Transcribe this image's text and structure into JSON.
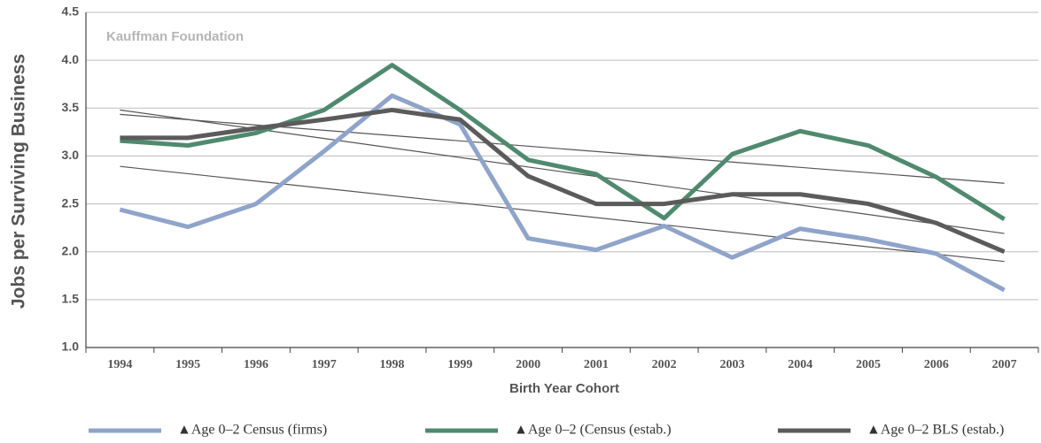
{
  "chart_data": {
    "type": "line",
    "annotation": "Kauffman Foundation",
    "y_label": "Jobs per Surviving Business",
    "x_label": "Birth Year Cohort",
    "categories": [
      "1994",
      "1995",
      "1996",
      "1997",
      "1998",
      "1999",
      "2000",
      "2001",
      "2002",
      "2003",
      "2004",
      "2005",
      "2006",
      "2007"
    ],
    "series": [
      {
        "name": "▲Age 0–2 Census (firms)",
        "color": "#8fa4ca",
        "values": [
          2.44,
          2.26,
          2.5,
          3.05,
          3.63,
          3.33,
          2.14,
          2.02,
          2.27,
          1.94,
          2.24,
          2.13,
          1.98,
          1.6
        ]
      },
      {
        "name": "▲Age 0–2 (Census (estab.)",
        "color": "#4f8a6e",
        "values": [
          3.16,
          3.11,
          3.24,
          3.48,
          3.95,
          3.48,
          2.96,
          2.81,
          2.35,
          3.02,
          3.26,
          3.11,
          2.78,
          2.34
        ]
      },
      {
        "name": "▲Age 0–2 BLS (estab.)",
        "color": "#5b5b5b",
        "values": [
          3.19,
          3.19,
          3.29,
          3.38,
          3.48,
          3.38,
          2.79,
          2.5,
          2.5,
          2.6,
          2.6,
          2.5,
          2.3,
          2.0
        ]
      }
    ],
    "ylim": [
      1,
      4.5
    ],
    "yticks": [
      {
        "value": 1,
        "label": "1.0"
      },
      1.5,
      {
        "value": 2,
        "label": "2.0"
      },
      2.5,
      {
        "value": 3,
        "label": "3.0"
      },
      3.5,
      {
        "value": 4,
        "label": "4.0"
      },
      4.5
    ],
    "grid": true,
    "trendline": true,
    "legend": "bottom"
  }
}
